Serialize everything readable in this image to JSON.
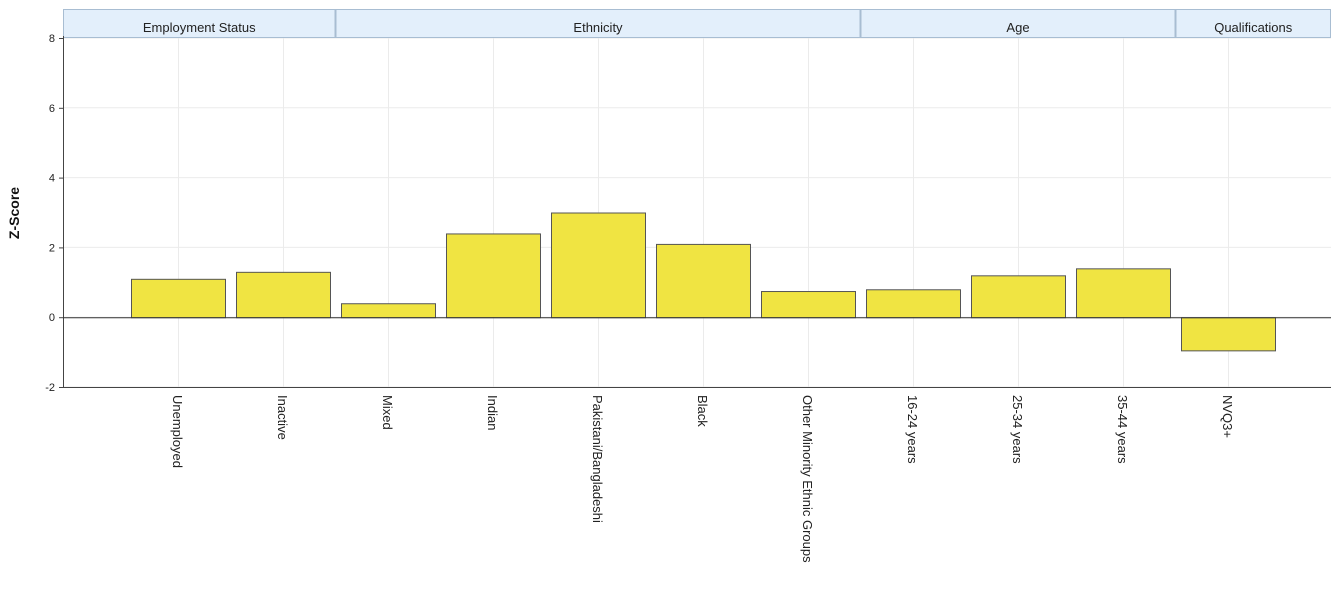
{
  "chart_data": {
    "type": "bar",
    "ylabel": "Z-Score",
    "ylim": [
      -2,
      8
    ],
    "yticks": [
      -2,
      0,
      2,
      4,
      6,
      8
    ],
    "grid": true,
    "bar_color": "#f0e442",
    "bar_stroke": "#555555",
    "group_header_color": "#e3effb",
    "group_header_border": "#a8bdd2",
    "categories": [
      "Unemployed",
      "Inactive",
      "Mixed",
      "Indian",
      "Pakistani/Bangladeshi",
      "Black",
      "Other Minority Ethnic Groups",
      "16-24 years",
      "25-34 years",
      "35-44 years",
      "NVQ3+"
    ],
    "values": [
      1.1,
      1.3,
      0.4,
      2.4,
      3.0,
      2.1,
      0.75,
      0.8,
      1.2,
      1.4,
      -0.95
    ],
    "groups": [
      {
        "name": "Employment Status",
        "start": 0,
        "end": 1
      },
      {
        "name": "Ethnicity",
        "start": 2,
        "end": 6
      },
      {
        "name": "Age",
        "start": 7,
        "end": 9
      },
      {
        "name": "Qualifications",
        "start": 10,
        "end": 10
      }
    ]
  }
}
